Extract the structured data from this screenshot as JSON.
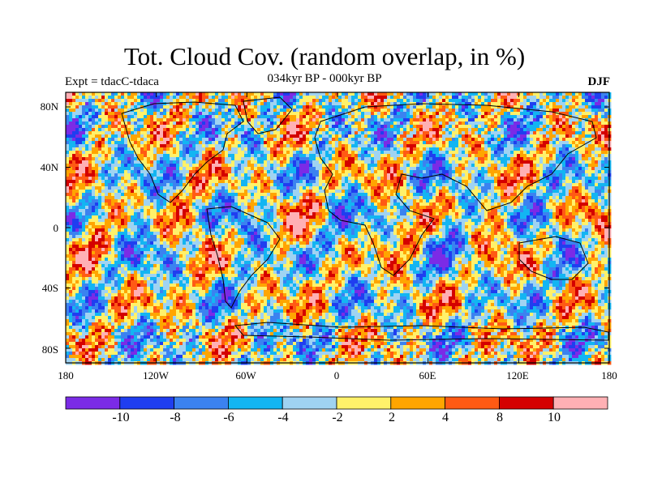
{
  "title": "Tot. Cloud Cov. (random overlap, in %)",
  "subtitle_left": "Expt = tdacC-tdaca",
  "subtitle_center": "034kyr BP - 000kyr BP",
  "subtitle_right": "DJF",
  "y_ticks": [
    "80N",
    "40N",
    "0",
    "40S",
    "80S"
  ],
  "x_ticks": [
    "180",
    "120W",
    "60W",
    "0",
    "60E",
    "120E",
    "180"
  ],
  "colorbar": {
    "labels": [
      "-10",
      "-8",
      "-6",
      "-4",
      "-2",
      "2",
      "4",
      "8",
      "10"
    ],
    "colors": [
      "#7b2be6",
      "#1f3ef0",
      "#3b82f0",
      "#13b5f2",
      "#9fd3f2",
      "#fff16a",
      "#ffa500",
      "#ff5a14",
      "#d40000",
      "#ffb0b4"
    ]
  },
  "icons": [
    "continent-outline",
    "colorbar-triangle-free"
  ]
}
